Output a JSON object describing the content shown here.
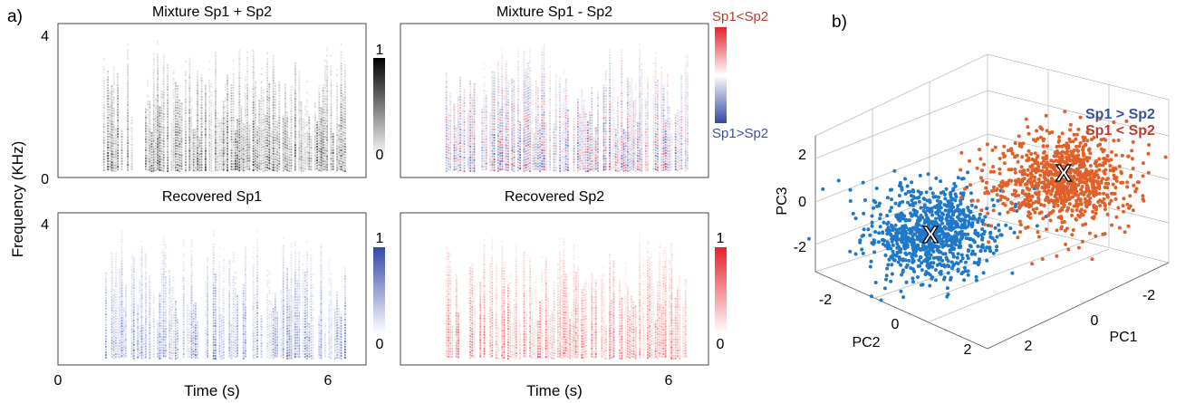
{
  "panel_a": {
    "label": "a)",
    "ylabel": "Frequency (KHz)",
    "xlabel": "Time (s)",
    "yticks": [
      "4",
      "0"
    ],
    "xticks": [
      "0",
      "6"
    ],
    "spectrograms": [
      {
        "title": "Mixture Sp1 + Sp2",
        "colorbar": {
          "top": "1",
          "bottom": "0"
        },
        "palette": "gray"
      },
      {
        "title": "Mixture Sp1 - Sp2",
        "colorbar": {
          "top": "Sp1<Sp2",
          "bottom": "Sp1>Sp2"
        },
        "palette": "diverging"
      },
      {
        "title": "Recovered Sp1",
        "colorbar": {
          "top": "1",
          "bottom": "0"
        },
        "palette": "blue"
      },
      {
        "title": "Recovered Sp2",
        "colorbar": {
          "top": "1",
          "bottom": "0"
        },
        "palette": "red"
      }
    ]
  },
  "panel_b": {
    "label": "b)",
    "axis_labels": {
      "pc1": "PC1",
      "pc2": "PC2",
      "pc3": "PC3"
    },
    "pc3_ticks": [
      "2",
      "0",
      "-2"
    ],
    "pc2_ticks": [
      "-2",
      "0",
      "2"
    ],
    "pc1_ticks": [
      "-2",
      "0",
      "2"
    ],
    "legend": [
      {
        "label": "Sp1 > Sp2",
        "color": "#3750a8"
      },
      {
        "label": "Sp1 < Sp2",
        "color": "#c0392b"
      }
    ],
    "centroid_marker": "X",
    "clusters": [
      {
        "name": "Sp1 > Sp2",
        "color": "#1f78c8"
      },
      {
        "name": "Sp1 < Sp2",
        "color": "#e0602a"
      }
    ]
  },
  "colors": {
    "blue": "#3b4ea8",
    "red": "#d9262b",
    "label_blue": "#3750a8",
    "label_red": "#c0392b"
  }
}
